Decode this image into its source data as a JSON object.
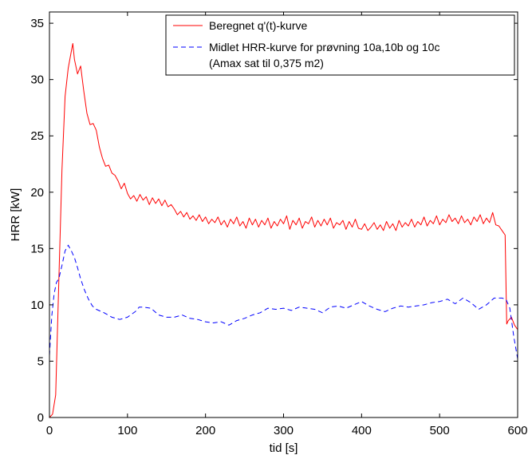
{
  "chart_data": {
    "type": "line",
    "xlabel": "tid [s]",
    "ylabel": "HRR [kW]",
    "xlim": [
      0,
      600
    ],
    "ylim": [
      0,
      36
    ],
    "xticks": [
      0,
      100,
      200,
      300,
      400,
      500,
      600
    ],
    "yticks": [
      0,
      5,
      10,
      15,
      20,
      25,
      30,
      35
    ],
    "grid": false,
    "legend": {
      "placement": "top-right",
      "entries": [
        "Beregnet q'(t)-kurve",
        "Midlet HRR-kurve for prøvning 10a,10b og 10c"
      ],
      "extra_line": "(Amax sat til 0,375 m2)"
    },
    "series": [
      {
        "name": "Beregnet q'(t)-kurve",
        "color": "#ff0000",
        "style": "solid",
        "x": [
          0,
          4,
          8,
          12,
          16,
          20,
          24,
          28,
          30,
          32,
          36,
          40,
          44,
          48,
          52,
          56,
          60,
          64,
          68,
          72,
          76,
          80,
          84,
          88,
          92,
          96,
          100,
          104,
          108,
          112,
          116,
          120,
          124,
          128,
          132,
          136,
          140,
          144,
          148,
          152,
          156,
          160,
          164,
          168,
          172,
          176,
          180,
          184,
          188,
          192,
          196,
          200,
          204,
          208,
          212,
          216,
          220,
          224,
          228,
          232,
          236,
          240,
          244,
          248,
          252,
          256,
          260,
          264,
          268,
          272,
          276,
          280,
          284,
          288,
          292,
          296,
          300,
          304,
          308,
          312,
          316,
          320,
          324,
          328,
          332,
          336,
          340,
          344,
          348,
          352,
          356,
          360,
          364,
          368,
          372,
          376,
          380,
          384,
          388,
          392,
          396,
          400,
          404,
          408,
          412,
          416,
          420,
          424,
          428,
          432,
          436,
          440,
          444,
          448,
          452,
          456,
          460,
          464,
          468,
          472,
          476,
          480,
          484,
          488,
          492,
          496,
          500,
          504,
          508,
          512,
          516,
          520,
          524,
          528,
          532,
          536,
          540,
          544,
          548,
          552,
          556,
          560,
          564,
          568,
          572,
          576,
          580,
          584,
          586,
          588,
          592,
          596,
          600
        ],
        "y": [
          0,
          0.3,
          2,
          12,
          22,
          28.5,
          31,
          32.5,
          33.2,
          31.8,
          30.5,
          31.2,
          29,
          27,
          26,
          26.1,
          25.5,
          24,
          23,
          22.3,
          22.4,
          21.7,
          21.5,
          21,
          20.3,
          20.8,
          19.9,
          19.4,
          19.7,
          19.2,
          19.8,
          19.3,
          19.6,
          18.9,
          19.5,
          19,
          19.4,
          18.8,
          19.3,
          18.7,
          18.9,
          18.5,
          18,
          18.3,
          17.8,
          18.2,
          17.6,
          17.9,
          17.5,
          18,
          17.4,
          17.8,
          17.2,
          17.6,
          17.3,
          17.8,
          17.1,
          17.5,
          16.9,
          17.6,
          17.2,
          17.8,
          17,
          17.4,
          16.8,
          17.7,
          17.1,
          17.6,
          16.9,
          17.5,
          17.1,
          17.7,
          16.8,
          17.4,
          17,
          17.6,
          17.2,
          17.9,
          16.7,
          17.5,
          17.1,
          17.7,
          16.8,
          17.4,
          17.2,
          17.8,
          16.9,
          17.5,
          17,
          17.6,
          17.1,
          17.7,
          16.8,
          17.3,
          17.1,
          17.5,
          16.7,
          17.4,
          16.9,
          17.6,
          16.8,
          16.7,
          17.2,
          16.6,
          16.9,
          17.3,
          16.7,
          17.1,
          16.6,
          17.4,
          16.8,
          17.2,
          16.6,
          17.5,
          16.9,
          17.3,
          17,
          17.6,
          16.9,
          17.4,
          17.1,
          17.8,
          17,
          17.5,
          17.2,
          17.9,
          17.1,
          17.6,
          17.3,
          18,
          17.4,
          17.7,
          17.2,
          17.9,
          17.3,
          17.6,
          17.1,
          17.8,
          17.4,
          18,
          17.2,
          17.7,
          17.3,
          18.2,
          17.1,
          17,
          16.6,
          16.2,
          8.3,
          8.6,
          8.9,
          8.2,
          7.8
        ]
      },
      {
        "name": "Midlet HRR-kurve for prøvning 10a,10b og 10c",
        "color": "#0000ff",
        "style": "dashed",
        "x": [
          0,
          3,
          6,
          9,
          12,
          16,
          20,
          24,
          28,
          32,
          36,
          40,
          45,
          50,
          55,
          60,
          70,
          80,
          90,
          100,
          110,
          115,
          120,
          130,
          140,
          150,
          160,
          170,
          180,
          190,
          200,
          210,
          220,
          230,
          240,
          250,
          260,
          270,
          280,
          290,
          300,
          310,
          320,
          330,
          340,
          350,
          360,
          370,
          380,
          390,
          400,
          410,
          420,
          430,
          440,
          450,
          460,
          470,
          480,
          490,
          500,
          510,
          520,
          530,
          540,
          550,
          560,
          570,
          580,
          585,
          590,
          595,
          600
        ],
        "y": [
          5.5,
          9,
          11,
          12,
          12.3,
          13.5,
          14.8,
          15.3,
          14.8,
          14.2,
          13.3,
          12.3,
          11.3,
          10.5,
          9.9,
          9.6,
          9.3,
          8.9,
          8.7,
          8.9,
          9.4,
          9.8,
          9.8,
          9.7,
          9.1,
          8.9,
          8.9,
          9.1,
          8.8,
          8.7,
          8.5,
          8.4,
          8.5,
          8.2,
          8.6,
          8.8,
          9.1,
          9.3,
          9.7,
          9.6,
          9.7,
          9.5,
          9.8,
          9.7,
          9.6,
          9.3,
          9.8,
          9.9,
          9.7,
          10,
          10.3,
          9.9,
          9.6,
          9.4,
          9.7,
          9.9,
          9.8,
          9.9,
          10,
          10.2,
          10.3,
          10.5,
          10.1,
          10.6,
          10.2,
          9.6,
          10,
          10.6,
          10.6,
          10.5,
          9.7,
          7.2,
          5.2
        ]
      }
    ]
  }
}
